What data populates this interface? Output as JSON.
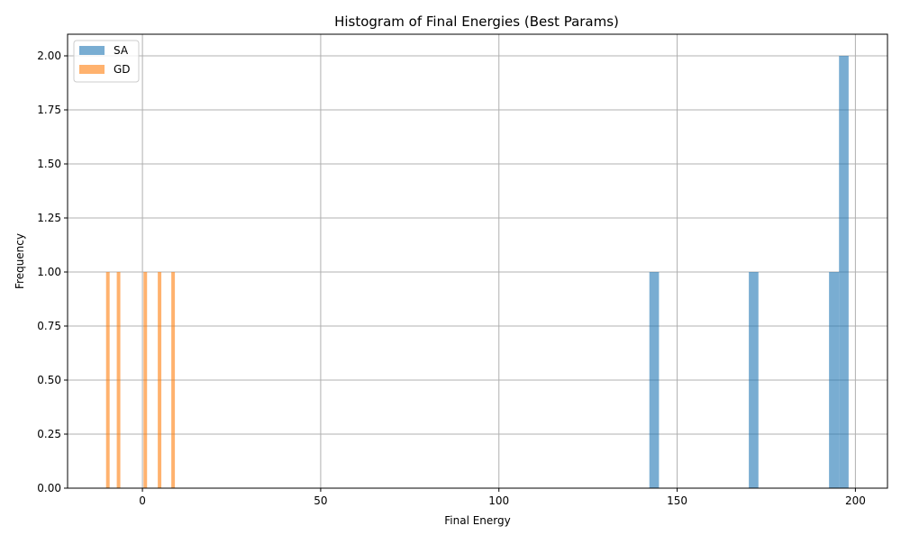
{
  "chart_data": {
    "type": "bar",
    "title": "Histogram of Final Energies (Best Params)",
    "xlabel": "Final Energy",
    "ylabel": "Frequency",
    "xlim": [
      -21,
      209
    ],
    "ylim": [
      0,
      2.1
    ],
    "x_ticks": [
      0,
      50,
      100,
      150,
      200
    ],
    "y_ticks": [
      0.0,
      0.25,
      0.5,
      0.75,
      1.0,
      1.25,
      1.5,
      1.75,
      2.0
    ],
    "x_tick_labels": [
      "0",
      "50",
      "100",
      "150",
      "200"
    ],
    "y_tick_labels": [
      "0.00",
      "0.25",
      "0.50",
      "0.75",
      "1.00",
      "1.25",
      "1.50",
      "1.75",
      "2.00"
    ],
    "grid": true,
    "legend_position": "top-left",
    "series": [
      {
        "name": "SA",
        "color": "#1f77b4",
        "opacity": 0.6,
        "bins": [
          {
            "x0": 142.2,
            "x1": 144.9,
            "count": 1
          },
          {
            "x0": 170.1,
            "x1": 172.8,
            "count": 1
          },
          {
            "x0": 192.6,
            "x1": 195.4,
            "count": 1
          },
          {
            "x0": 195.4,
            "x1": 198.1,
            "count": 2
          }
        ]
      },
      {
        "name": "GD",
        "color": "#ff7f0e",
        "opacity": 0.6,
        "bins": [
          {
            "x0": -10.2,
            "x1": -9.2,
            "count": 1
          },
          {
            "x0": -7.2,
            "x1": -6.2,
            "count": 1
          },
          {
            "x0": 0.3,
            "x1": 1.3,
            "count": 1
          },
          {
            "x0": 4.3,
            "x1": 5.3,
            "count": 1
          },
          {
            "x0": 8.1,
            "x1": 9.1,
            "count": 1
          }
        ]
      }
    ]
  }
}
